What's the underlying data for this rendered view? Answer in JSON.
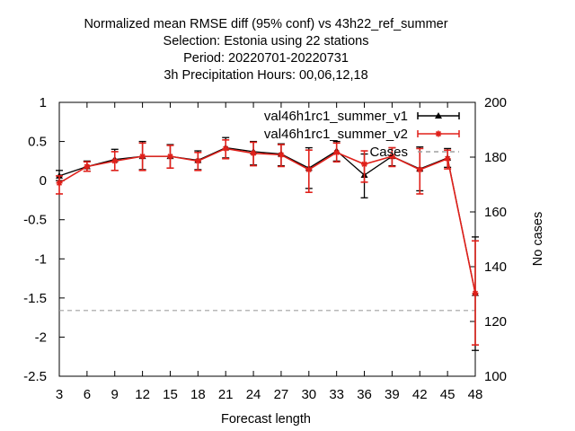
{
  "chart_data": {
    "type": "line",
    "title_lines": [
      "Normalized mean RMSE diff (95% conf) vs 43h22_ref_summer",
      "Selection: Estonia using    22 stations",
      "Period: 20220701-20220731",
      "3h Precipitation   Hours:  00,06,12,18"
    ],
    "xlabel": "Forecast length",
    "ylabel": "",
    "y2label": "No cases",
    "x": [
      3,
      6,
      9,
      12,
      15,
      18,
      21,
      24,
      27,
      30,
      33,
      36,
      39,
      42,
      45,
      48
    ],
    "xticks": [
      "3",
      "6",
      "9",
      "12",
      "15",
      "18",
      "21",
      "24",
      "27",
      "30",
      "33",
      "36",
      "39",
      "42",
      "45",
      "48"
    ],
    "ylim": [
      -2.5,
      1
    ],
    "yticks": [
      "-2.5",
      "-2",
      "-1.5",
      "-1",
      "-0.5",
      "0",
      "0.5",
      "1"
    ],
    "y2lim": [
      100,
      200
    ],
    "y2ticks": [
      "100",
      "120",
      "140",
      "160",
      "180",
      "200"
    ],
    "legend_position": "top-right",
    "series": [
      {
        "name": "val46h1rc1_summer_v1",
        "color": "#000000",
        "marker": "triangle",
        "values": [
          0.06,
          0.18,
          0.27,
          0.31,
          0.31,
          0.26,
          0.42,
          0.37,
          0.34,
          0.16,
          0.38,
          0.07,
          0.31,
          0.15,
          0.29,
          -1.44
        ],
        "err_low": [
          0.0,
          0.12,
          0.13,
          0.14,
          0.16,
          0.14,
          0.29,
          0.2,
          0.19,
          -0.1,
          0.25,
          -0.22,
          0.19,
          -0.13,
          0.17,
          -2.17
        ],
        "err_high": [
          0.13,
          0.25,
          0.4,
          0.5,
          0.46,
          0.38,
          0.55,
          0.5,
          0.47,
          0.42,
          0.5,
          0.34,
          0.42,
          0.43,
          0.41,
          -0.72
        ]
      },
      {
        "name": "val46h1rc1_summer_v2",
        "color": "#e0201a",
        "marker": "star",
        "values": [
          -0.03,
          0.18,
          0.25,
          0.31,
          0.31,
          0.25,
          0.41,
          0.35,
          0.33,
          0.14,
          0.36,
          0.21,
          0.31,
          0.14,
          0.28,
          -1.44
        ],
        "err_low": [
          -0.17,
          0.12,
          0.13,
          0.13,
          0.16,
          0.13,
          0.28,
          0.19,
          0.18,
          -0.15,
          0.24,
          -0.02,
          0.18,
          -0.17,
          0.15,
          -2.1
        ],
        "err_high": [
          0.06,
          0.24,
          0.37,
          0.48,
          0.45,
          0.36,
          0.52,
          0.49,
          0.46,
          0.39,
          0.48,
          0.38,
          0.42,
          0.41,
          0.39,
          -0.77
        ]
      }
    ],
    "cases": {
      "name": "Cases",
      "color": "#a0a0a0",
      "values": [
        124,
        124,
        124,
        124,
        124,
        124,
        124,
        124,
        124,
        124,
        124,
        124,
        124,
        124,
        124,
        124
      ]
    }
  }
}
